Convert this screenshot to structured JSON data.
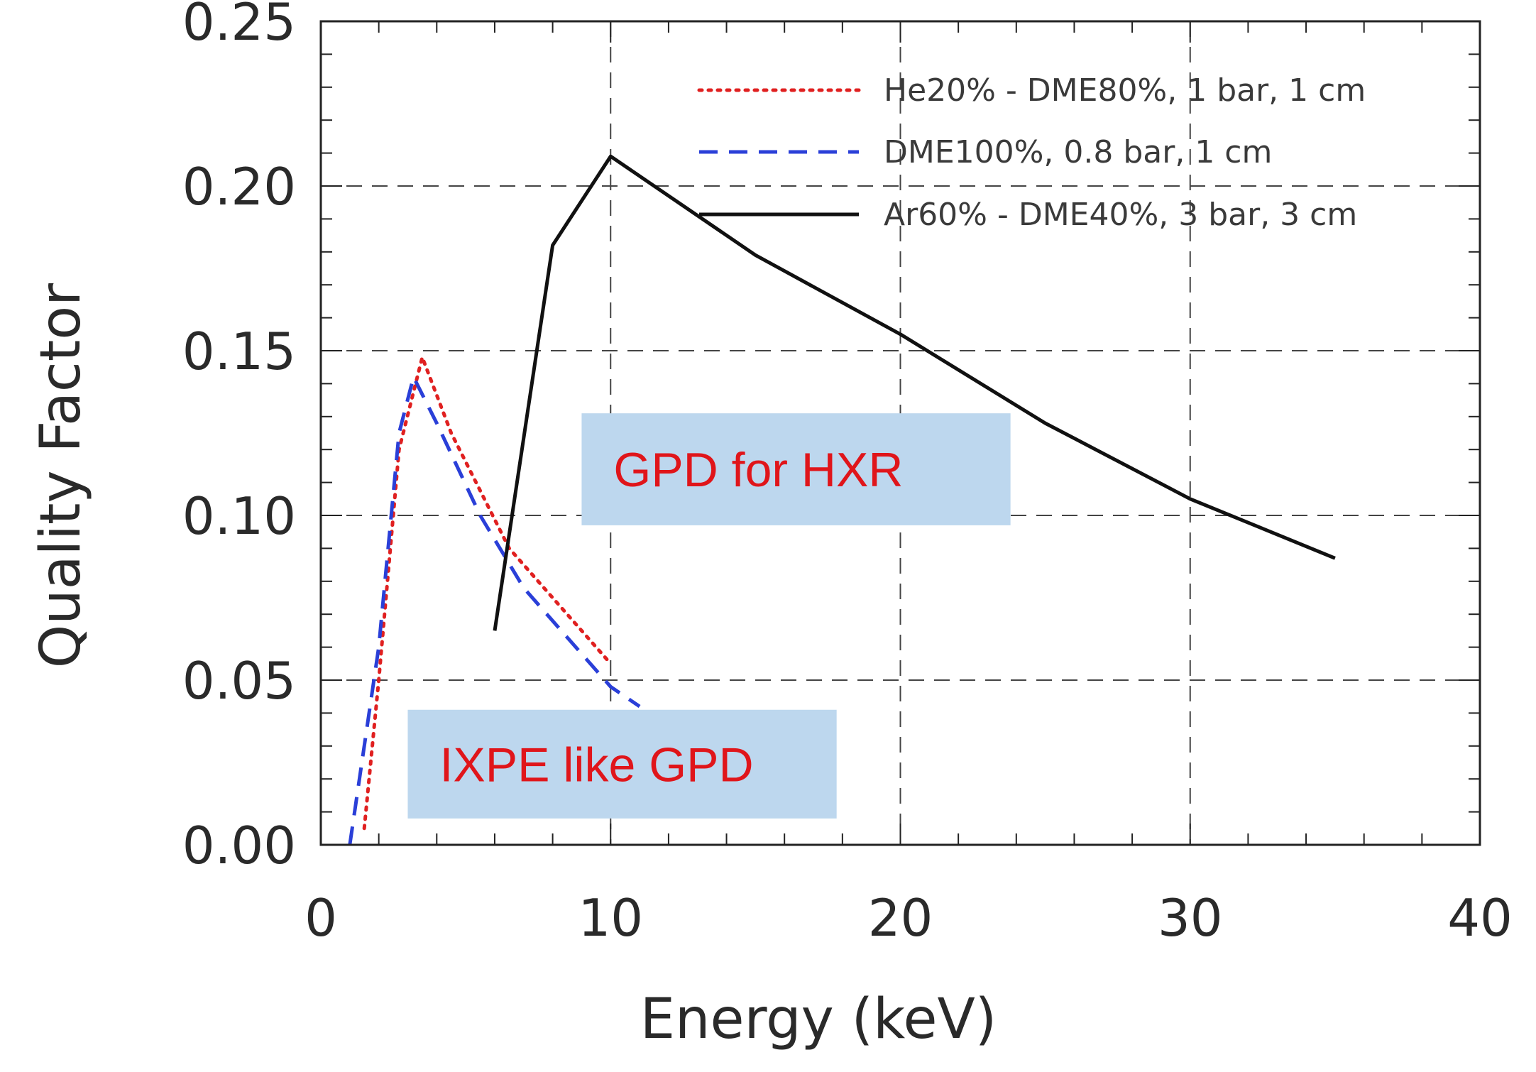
{
  "chart_data": {
    "type": "line",
    "title": "",
    "xlabel": "Energy (keV)",
    "ylabel": "Quality Factor",
    "xlim": [
      0,
      40
    ],
    "ylim": [
      0,
      0.25
    ],
    "x_ticks": [
      0,
      10,
      20,
      30,
      40
    ],
    "x_tick_labels": [
      "0",
      "10",
      "20",
      "30",
      "40"
    ],
    "y_ticks": [
      0,
      0.05,
      0.1,
      0.15,
      0.2,
      0.25
    ],
    "y_tick_labels": [
      "0.00",
      "0.05",
      "0.10",
      "0.15",
      "0.20",
      "0.25"
    ],
    "grid": true,
    "legend_position": "top-right",
    "series": [
      {
        "name": "He20% - DME80%, 1 bar, 1 cm",
        "color": "#e02020",
        "style": "dotted",
        "x": [
          1.5,
          2.0,
          2.7,
          3.5,
          4.5,
          6.5,
          8.0,
          10.0
        ],
        "y": [
          0.005,
          0.05,
          0.12,
          0.148,
          0.125,
          0.09,
          0.075,
          0.055
        ]
      },
      {
        "name": "DME100%, 0.8 bar, 1 cm",
        "color": "#2a3fd8",
        "style": "dashed",
        "x": [
          1.0,
          2.0,
          2.7,
          3.2,
          4.0,
          5.5,
          7.0,
          9.0,
          10.0,
          11.0
        ],
        "y": [
          0.0,
          0.06,
          0.125,
          0.142,
          0.128,
          0.1,
          0.078,
          0.058,
          0.048,
          0.042
        ]
      },
      {
        "name": "Ar60% - DME40%, 3 bar, 3 cm",
        "color": "#111111",
        "style": "solid",
        "x": [
          6.0,
          8.0,
          10.0,
          15.0,
          20.0,
          25.0,
          30.0,
          35.0
        ],
        "y": [
          0.065,
          0.182,
          0.209,
          0.179,
          0.155,
          0.128,
          0.105,
          0.087
        ]
      }
    ],
    "annotations": [
      {
        "text": "GPD for HXR",
        "x_range": [
          9.0,
          23.8
        ],
        "y_range": [
          0.097,
          0.131
        ],
        "bg": "#bdd7ee",
        "color": "#e0151a"
      },
      {
        "text": "IXPE like GPD",
        "x_range": [
          3.0,
          17.8
        ],
        "y_range": [
          0.008,
          0.041
        ],
        "bg": "#bdd7ee",
        "color": "#e0151a"
      }
    ]
  }
}
